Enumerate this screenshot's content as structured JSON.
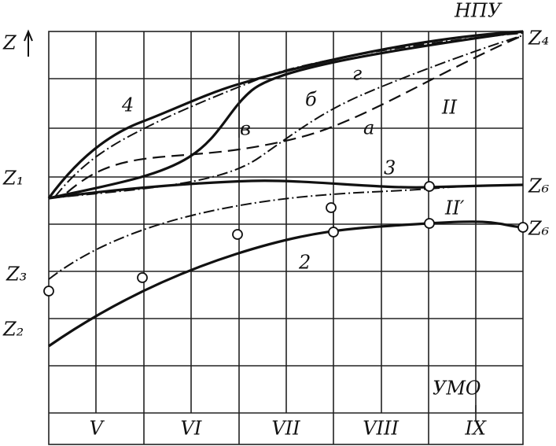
{
  "labels": {
    "npu": "НПУ",
    "z_axis": "Z",
    "z4": "Z₄",
    "z1": "Z₁",
    "z6_upper": "Z₆",
    "z6_lower": "Z₆",
    "z3": "Z₃",
    "z2": "Z₂",
    "umo": "УМО"
  },
  "curve_labels": {
    "c4": "4",
    "v": "в",
    "b": "б",
    "g": "г",
    "a": "а",
    "zone2": "II",
    "c3": "3",
    "zone2p": "II′",
    "c2": "2"
  },
  "months": [
    "V",
    "VI",
    "VII",
    "VIII",
    "IX"
  ]
}
